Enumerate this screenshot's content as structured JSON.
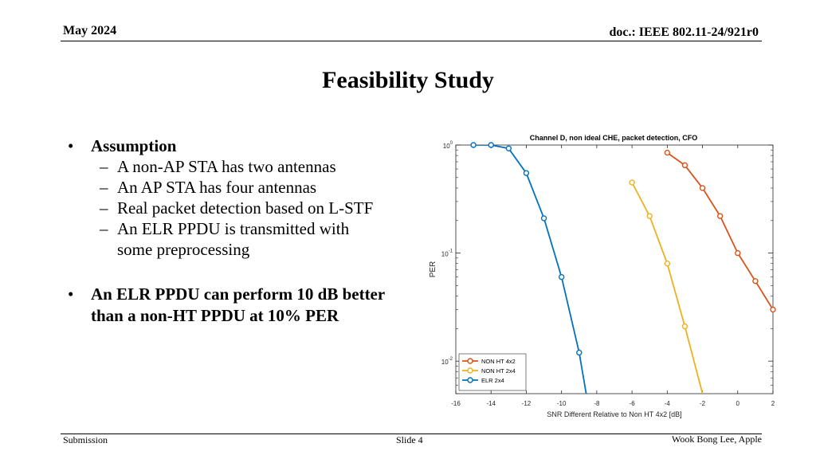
{
  "header": {
    "date": "May 2024",
    "doc": "doc.: IEEE 802.11-24/921r0"
  },
  "title": "Feasibility Study",
  "bullets": {
    "assumption": {
      "heading": "Assumption",
      "items": [
        "A non-AP STA has two antennas",
        "An AP STA has four antennas",
        "Real packet detection based on L-STF",
        "An ELR PPDU is transmitted with some preprocessing"
      ]
    },
    "conclusion": "An ELR PPDU can perform 10 dB better than a non-HT PPDU at 10% PER",
    "bullet_glyph": "•",
    "dash_glyph": "–"
  },
  "chart_data": {
    "type": "line",
    "title": "Channel D, non ideal CHE, packet detection, CFO",
    "xlabel": "SNR Different Relative to Non HT 4x2 [dB]",
    "ylabel": "PER",
    "yscale": "log",
    "xlim": [
      -16,
      2
    ],
    "ylim": [
      0.005,
      1
    ],
    "xticks": [
      -16,
      -14,
      -12,
      -10,
      -8,
      -6,
      -4,
      -2,
      0,
      2
    ],
    "yticks": [
      {
        "value": 1,
        "base": "10",
        "exp": "0"
      },
      {
        "value": 0.1,
        "base": "10",
        "exp": "-1"
      },
      {
        "value": 0.01,
        "base": "10",
        "exp": "-2"
      }
    ],
    "grid": false,
    "legend_position": "bottom-left",
    "series": [
      {
        "name": "NON HT 4x2",
        "color": "#D95319",
        "x": [
          -4,
          -3,
          -2,
          -1,
          0,
          1,
          2
        ],
        "y": [
          0.85,
          0.65,
          0.4,
          0.22,
          0.1,
          0.055,
          0.03
        ]
      },
      {
        "name": "NON HT 2x4",
        "color": "#EDB120",
        "x": [
          -6,
          -5,
          -4,
          -3,
          -2
        ],
        "y": [
          0.45,
          0.22,
          0.08,
          0.021,
          0.005
        ]
      },
      {
        "name": "ELR 2x4",
        "color": "#0072BD",
        "x": [
          -15,
          -14,
          -13,
          -12,
          -11,
          -10,
          -9,
          -8.6
        ],
        "y": [
          1.0,
          1.0,
          0.93,
          0.55,
          0.21,
          0.06,
          0.012,
          0.005
        ]
      }
    ]
  },
  "footer": {
    "left": "Submission",
    "center": "Slide 4",
    "right": "Wook Bong Lee, Apple"
  }
}
